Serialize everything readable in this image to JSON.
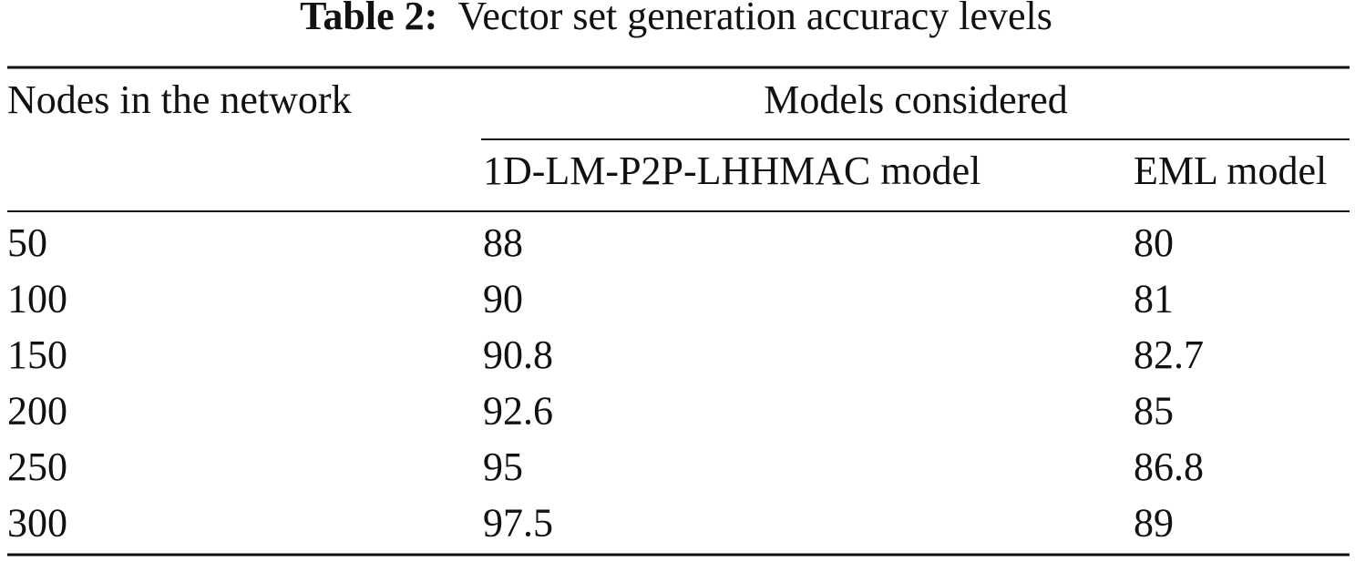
{
  "caption": {
    "label": "Table 2:",
    "text": "Vector set generation accuracy levels"
  },
  "table": {
    "header": {
      "first": "Nodes in the network",
      "group": "Models considered",
      "columns": [
        "1D-LM-P2P-LHHMAC model",
        "EML model"
      ]
    },
    "rows": [
      [
        50,
        88,
        80
      ],
      [
        100,
        90,
        81
      ],
      [
        150,
        90.8,
        82.7
      ],
      [
        200,
        92.6,
        85
      ],
      [
        250,
        95,
        86.8
      ],
      [
        300,
        97.5,
        89
      ]
    ]
  }
}
